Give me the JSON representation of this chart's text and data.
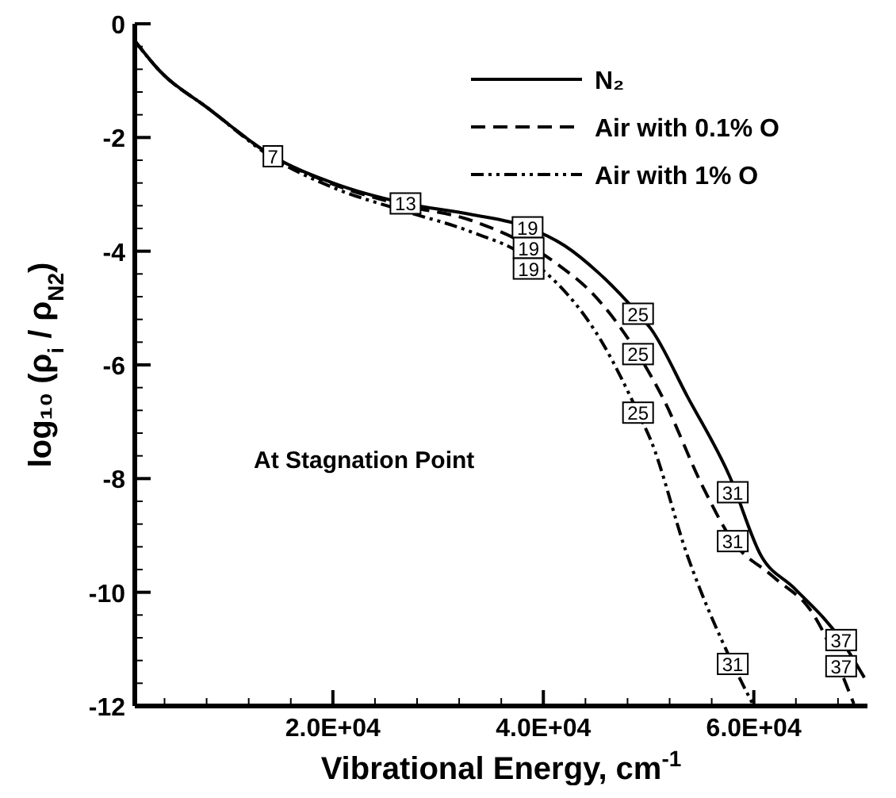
{
  "chart_data": {
    "type": "line",
    "xlabel": "Vibrational Energy, cm$^{-1}$",
    "ylabel": "log₁₀ (ρ$_{i}$ / ρ$_{N2}$)",
    "xlim": [
      1175,
      70800
    ],
    "ylim": [
      -12,
      0
    ],
    "xticks": [
      {
        "value": 4000,
        "label": null
      },
      {
        "value": 8000,
        "label": null
      },
      {
        "value": 12000,
        "label": null
      },
      {
        "value": 16000,
        "label": null
      },
      {
        "value": 20000,
        "label": "2.0E+04"
      },
      {
        "value": 24000,
        "label": null
      },
      {
        "value": 28000,
        "label": null
      },
      {
        "value": 32000,
        "label": null
      },
      {
        "value": 36000,
        "label": null
      },
      {
        "value": 40000,
        "label": "4.0E+04"
      },
      {
        "value": 44000,
        "label": null
      },
      {
        "value": 48000,
        "label": null
      },
      {
        "value": 52000,
        "label": null
      },
      {
        "value": 56000,
        "label": null
      },
      {
        "value": 60000,
        "label": "6.0E+04"
      },
      {
        "value": 64000,
        "label": null
      },
      {
        "value": 68000,
        "label": null
      }
    ],
    "yticks": [
      -12,
      {
        "value": -11.6,
        "label": null
      },
      {
        "value": -11.2,
        "label": null
      },
      {
        "value": -10.8,
        "label": null
      },
      {
        "value": -10.4,
        "label": null
      },
      -10,
      {
        "value": -9.6,
        "label": null
      },
      {
        "value": -9.2,
        "label": null
      },
      {
        "value": -8.8,
        "label": null
      },
      {
        "value": -8.4,
        "label": null
      },
      -8,
      {
        "value": -7.6,
        "label": null
      },
      {
        "value": -7.2,
        "label": null
      },
      {
        "value": -6.8,
        "label": null
      },
      {
        "value": -6.4,
        "label": null
      },
      -6,
      {
        "value": -5.6,
        "label": null
      },
      {
        "value": -5.2,
        "label": null
      },
      {
        "value": -4.8,
        "label": null
      },
      {
        "value": -4.4,
        "label": null
      },
      -4,
      {
        "value": -3.6,
        "label": null
      },
      {
        "value": -3.2,
        "label": null
      },
      {
        "value": -2.8,
        "label": null
      },
      {
        "value": -2.4,
        "label": null
      },
      -2,
      {
        "value": -1.6,
        "label": null
      },
      {
        "value": -1.2,
        "label": null
      },
      {
        "value": -0.8,
        "label": null
      },
      {
        "value": -0.4,
        "label": null
      },
      0
    ],
    "grid": false,
    "legend": "top right",
    "marker": "none",
    "series": [
      {
        "name": "N₂",
        "color": "#000000",
        "line_style": "solid",
        "x": [
          1175,
          3600,
          8100,
          14300,
          20000,
          26900,
          33000,
          38500,
          42000,
          45300,
          49000,
          50200,
          53700,
          57700,
          60700,
          63800,
          68300,
          70500
        ],
        "values": [
          -0.3,
          -0.84,
          -1.48,
          -2.33,
          -2.8,
          -3.16,
          -3.35,
          -3.58,
          -3.9,
          -4.39,
          -5.1,
          -5.36,
          -6.56,
          -7.96,
          -9.36,
          -9.92,
          -10.84,
          -11.5
        ]
      },
      {
        "name": "Air with 0.1% O",
        "color": "#000000",
        "line_style": "dashed",
        "x": [
          1175,
          3600,
          8100,
          14300,
          20000,
          26900,
          33000,
          41500,
          44700,
          49000,
          51300,
          55200,
          58000,
          61800,
          65700,
          69500
        ],
        "values": [
          -0.3,
          -0.84,
          -1.48,
          -2.33,
          -2.82,
          -3.2,
          -3.45,
          -4.25,
          -4.75,
          -5.81,
          -6.56,
          -8.16,
          -9.1,
          -9.72,
          -10.4,
          -11.96
        ]
      },
      {
        "name": "Air with 1% O",
        "color": "#000000",
        "line_style": "dashdot",
        "x": [
          1175,
          3600,
          8100,
          14300,
          20000,
          26900,
          33000,
          38600,
          45700,
          49000,
          50200,
          53700,
          58000,
          60000
        ],
        "values": [
          -0.3,
          -0.84,
          -1.48,
          -2.36,
          -2.88,
          -3.3,
          -3.65,
          -4.13,
          -5.64,
          -6.84,
          -7.32,
          -9.36,
          -11.26,
          -12
        ]
      }
    ],
    "annotations": [
      "At Stagnation Point",
      {
        "text": "7",
        "x": 14300,
        "y": -2.33
      },
      {
        "text": "13",
        "x": 26900,
        "y": -3.16
      },
      {
        "text": "19",
        "x": 38500,
        "y": -3.58
      },
      {
        "text": "19",
        "x": 38600,
        "y": -3.83
      },
      {
        "text": "19",
        "x": 38600,
        "y": -4.13
      },
      {
        "text": "25",
        "x": 49000,
        "y": -5.1
      },
      {
        "text": "25",
        "x": 49000,
        "y": -5.81
      },
      {
        "text": "25",
        "x": 49000,
        "y": -6.84
      },
      {
        "text": "31",
        "x": 58000,
        "y": -8.24
      },
      {
        "text": "31",
        "x": 58000,
        "y": -9.1
      },
      {
        "text": "31",
        "x": 58000,
        "y": -11.26
      },
      {
        "text": "37",
        "x": 68300,
        "y": -10.84
      },
      {
        "text": "37",
        "x": 68300,
        "y": -11.3
      }
    ]
  }
}
